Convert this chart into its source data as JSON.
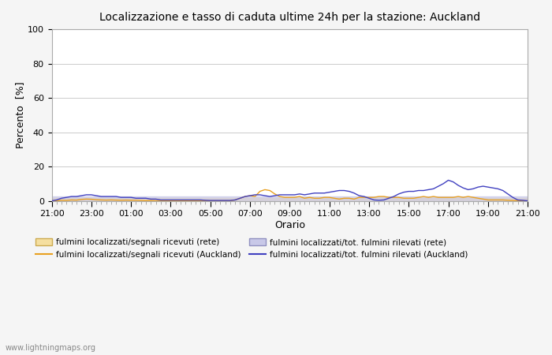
{
  "title": "Localizzazione e tasso di caduta ultime 24h per la stazione: Auckland",
  "xlabel": "Orario",
  "ylabel": "Percento  [%]",
  "xlim": [
    0,
    48
  ],
  "ylim": [
    0,
    100
  ],
  "yticks": [
    0,
    20,
    40,
    60,
    80,
    100
  ],
  "xtick_labels": [
    "21:00",
    "23:00",
    "01:00",
    "03:00",
    "05:00",
    "07:00",
    "09:00",
    "11:00",
    "13:00",
    "15:00",
    "17:00",
    "19:00",
    "21:00"
  ],
  "xtick_positions": [
    0,
    4,
    8,
    12,
    16,
    20,
    24,
    28,
    32,
    36,
    40,
    44,
    48
  ],
  "bg_color": "#f5f5f5",
  "plot_bg_color": "#ffffff",
  "watermark": "www.lightningmaps.org",
  "legend_items": [
    {
      "label": "fulmini localizzati/segnali ricevuti (rete)",
      "color": "#f5dfa0",
      "type": "fill"
    },
    {
      "label": "fulmini localizzati/segnali ricevuti (Auckland)",
      "color": "#e8a020",
      "type": "line"
    },
    {
      "label": "fulmini localizzati/tot. fulmini rilevati (rete)",
      "color": "#c8c8e8",
      "type": "fill"
    },
    {
      "label": "fulmini localizzati/tot. fulmini rilevati (Auckland)",
      "color": "#4040c0",
      "type": "line"
    }
  ],
  "series_orange_x": [
    0,
    0.5,
    1,
    1.5,
    2,
    2.5,
    3,
    3.5,
    4,
    4.5,
    5,
    5.5,
    6,
    6.5,
    7,
    7.5,
    8,
    8.5,
    9,
    9.5,
    10,
    10.5,
    11,
    11.5,
    12,
    12.5,
    13,
    13.5,
    14,
    14.5,
    15,
    15.5,
    16,
    16.5,
    17,
    17.5,
    18,
    18.5,
    19,
    19.5,
    20,
    20.5,
    21,
    21.5,
    22,
    22.5,
    23,
    23.5,
    24,
    24.5,
    25,
    25.5,
    26,
    26.5,
    27,
    27.5,
    28,
    28.5,
    29,
    29.5,
    30,
    30.5,
    31,
    31.5,
    32,
    32.5,
    33,
    33.5,
    34,
    34.5,
    35,
    35.5,
    36,
    36.5,
    37,
    37.5,
    38,
    38.5,
    39,
    39.5,
    40,
    40.5,
    41,
    41.5,
    42,
    42.5,
    43,
    43.5,
    44,
    44.5,
    45,
    45.5,
    46,
    46.5,
    47,
    47.5,
    48
  ],
  "series_orange_y": [
    0,
    0,
    0.3,
    0.2,
    0.5,
    0.4,
    0.8,
    1.0,
    0.9,
    0.6,
    0.5,
    0.4,
    0.5,
    0.4,
    0.3,
    0.4,
    0.3,
    0.3,
    0.2,
    0.1,
    0.1,
    0.0,
    0.0,
    0.0,
    0.0,
    0.0,
    0.0,
    0.0,
    0.0,
    0.0,
    0.0,
    0.0,
    0.0,
    0.0,
    0.0,
    0.0,
    0.0,
    0.5,
    1.5,
    2.5,
    3.0,
    2.5,
    5.5,
    6.5,
    6.0,
    4.0,
    2.5,
    2.0,
    2.0,
    2.0,
    2.5,
    1.5,
    2.0,
    1.5,
    1.5,
    2.0,
    2.0,
    1.5,
    1.0,
    1.5,
    1.5,
    1.0,
    2.0,
    2.0,
    2.0,
    2.0,
    2.5,
    2.5,
    2.0,
    2.0,
    2.0,
    1.5,
    1.5,
    1.5,
    2.0,
    2.5,
    2.0,
    2.5,
    2.0,
    2.0,
    2.0,
    2.0,
    2.5,
    2.0,
    2.5,
    2.0,
    1.5,
    1.0,
    0.5,
    0.5,
    0.5,
    0.5,
    0.3,
    0.2,
    0.1,
    0.0,
    0.0
  ],
  "series_blue_x": [
    0,
    0.5,
    1,
    1.5,
    2,
    2.5,
    3,
    3.5,
    4,
    4.5,
    5,
    5.5,
    6,
    6.5,
    7,
    7.5,
    8,
    8.5,
    9,
    9.5,
    10,
    10.5,
    11,
    11.5,
    12,
    12.5,
    13,
    13.5,
    14,
    14.5,
    15,
    15.5,
    16,
    16.5,
    17,
    17.5,
    18,
    18.5,
    19,
    19.5,
    20,
    20.5,
    21,
    21.5,
    22,
    22.5,
    23,
    23.5,
    24,
    24.5,
    25,
    25.5,
    26,
    26.5,
    27,
    27.5,
    28,
    28.5,
    29,
    29.5,
    30,
    30.5,
    31,
    31.5,
    32,
    32.5,
    33,
    33.5,
    34,
    34.5,
    35,
    35.5,
    36,
    36.5,
    37,
    37.5,
    38,
    38.5,
    39,
    39.5,
    40,
    40.5,
    41,
    41.5,
    42,
    42.5,
    43,
    43.5,
    44,
    44.5,
    45,
    45.5,
    46,
    46.5,
    47,
    47.5,
    48
  ],
  "series_blue_y": [
    0,
    0.5,
    1.5,
    2.0,
    2.5,
    2.5,
    3.0,
    3.5,
    3.5,
    3.0,
    2.5,
    2.5,
    2.5,
    2.5,
    2.0,
    2.0,
    2.0,
    1.5,
    1.5,
    1.5,
    1.0,
    1.0,
    0.5,
    0.5,
    0.5,
    0.5,
    0.5,
    0.5,
    0.5,
    0.5,
    0.5,
    0.3,
    0.2,
    0.2,
    0.2,
    0.2,
    0.2,
    0.5,
    1.5,
    2.5,
    3.0,
    3.5,
    3.5,
    3.0,
    2.5,
    3.0,
    3.5,
    3.5,
    3.5,
    3.5,
    4.0,
    3.5,
    4.0,
    4.5,
    4.5,
    4.5,
    5.0,
    5.5,
    6.0,
    6.0,
    5.5,
    4.5,
    3.0,
    2.5,
    1.5,
    0.5,
    0.3,
    0.5,
    1.5,
    2.5,
    4.0,
    5.0,
    5.5,
    5.5,
    6.0,
    6.0,
    6.5,
    7.0,
    8.5,
    10.0,
    12.0,
    11.0,
    9.0,
    7.5,
    6.5,
    7.0,
    8.0,
    8.5,
    8.0,
    7.5,
    7.0,
    6.0,
    4.0,
    2.0,
    0.5,
    0.3,
    0.0
  ],
  "series_orange_fill_y": [
    1.5,
    1.5,
    1.5,
    1.5,
    1.5,
    1.5,
    1.5,
    1.5,
    1.5,
    1.5,
    1.5,
    1.5,
    1.5,
    1.5,
    1.5,
    1.5,
    1.5,
    1.5,
    1.5,
    1.5,
    1.5,
    1.5,
    1.5,
    1.5,
    1.5,
    1.5,
    1.5,
    1.5,
    1.5,
    1.5,
    1.5,
    1.5,
    1.5,
    1.5,
    1.5,
    1.5,
    1.5,
    1.5,
    1.5,
    1.5,
    1.5,
    1.5,
    1.5,
    1.5,
    1.5,
    1.5,
    1.5,
    1.5,
    1.5,
    1.5,
    1.5,
    1.5,
    1.5,
    1.5,
    1.5,
    1.5,
    1.5,
    1.5,
    1.5,
    1.5,
    1.5,
    1.5,
    1.5,
    1.5,
    1.5,
    1.5,
    1.5,
    1.5,
    1.5,
    1.5,
    1.5,
    1.5,
    1.5,
    1.5,
    1.5,
    1.5,
    1.5,
    1.5,
    1.5,
    1.5,
    1.5,
    1.5,
    1.5,
    1.5,
    1.5,
    1.5,
    1.5,
    1.5,
    1.5,
    1.5,
    1.5,
    1.5,
    1.5,
    1.5,
    1.5,
    1.5,
    1.5
  ],
  "series_blue_fill_y": [
    2.5,
    2.5,
    2.5,
    2.5,
    2.5,
    2.5,
    2.5,
    2.5,
    2.5,
    2.5,
    2.5,
    2.5,
    2.5,
    2.5,
    2.5,
    2.5,
    2.5,
    2.5,
    2.5,
    2.5,
    2.5,
    2.5,
    2.5,
    2.5,
    2.5,
    2.5,
    2.5,
    2.5,
    2.5,
    2.5,
    2.5,
    2.5,
    2.5,
    2.5,
    2.5,
    2.5,
    2.5,
    2.5,
    2.5,
    2.5,
    2.5,
    2.5,
    2.5,
    2.5,
    2.5,
    2.5,
    2.5,
    2.5,
    2.5,
    2.5,
    2.5,
    2.5,
    2.5,
    2.5,
    2.5,
    2.5,
    2.5,
    2.5,
    2.5,
    2.5,
    2.5,
    2.5,
    2.5,
    2.5,
    2.5,
    2.5,
    2.5,
    2.5,
    2.5,
    2.5,
    2.5,
    2.5,
    2.5,
    2.5,
    2.5,
    2.5,
    2.5,
    2.5,
    2.5,
    2.5,
    2.5,
    2.5,
    2.5,
    2.5,
    2.5,
    2.5,
    2.5,
    2.5,
    2.5,
    2.5,
    2.5,
    2.5,
    2.5,
    2.5,
    2.5,
    2.5,
    2.5
  ]
}
